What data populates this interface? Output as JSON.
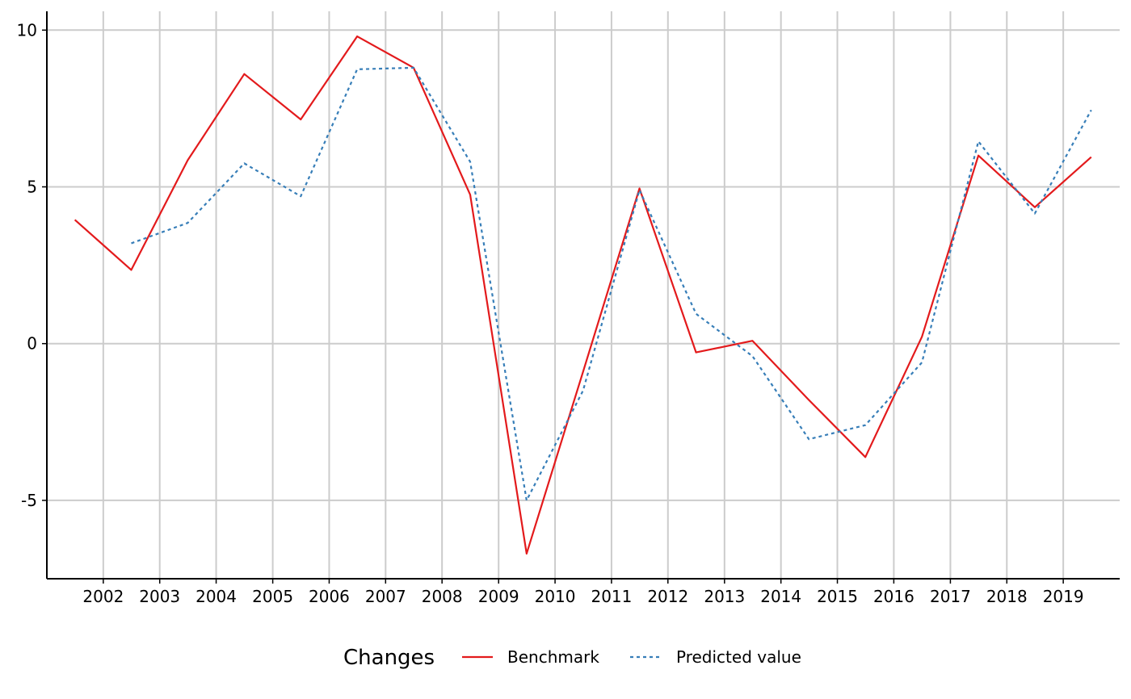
{
  "chart_data": {
    "type": "line",
    "x_axis": {
      "type": "date",
      "tick_labels": [
        "2002",
        "2003",
        "2004",
        "2005",
        "2006",
        "2007",
        "2008",
        "2009",
        "2010",
        "2011",
        "2012",
        "2013",
        "2014",
        "2015",
        "2016",
        "2017",
        "2018",
        "2019"
      ],
      "range": [
        "2001-01-01",
        "2020-01-01"
      ]
    },
    "y_axis": {
      "ticks": [
        -5,
        0,
        5,
        10
      ],
      "tick_labels": [
        "-5",
        "0",
        "5",
        "10"
      ],
      "range": [
        -7.5,
        10.6
      ]
    },
    "grid": true,
    "legend": {
      "title": "Changes",
      "placement": "bottom"
    },
    "series": [
      {
        "name": "Benchmark",
        "color": "#e31a1c",
        "line_style": "solid",
        "x": [
          "2001-07-01",
          "2002-07-01",
          "2003-07-01",
          "2004-07-01",
          "2005-07-01",
          "2006-07-01",
          "2007-07-01",
          "2008-07-01",
          "2009-07-01",
          "2010-07-01",
          "2011-07-01",
          "2012-07-01",
          "2013-07-01",
          "2014-07-01",
          "2015-07-01",
          "2016-07-01",
          "2017-07-01",
          "2018-07-01",
          "2019-07-01"
        ],
        "y": [
          3.95,
          2.35,
          5.85,
          8.6,
          7.15,
          9.8,
          8.8,
          4.75,
          -6.7,
          -0.9,
          4.95,
          -0.28,
          0.09,
          -1.8,
          -3.62,
          0.22,
          6.0,
          4.35,
          5.95
        ]
      },
      {
        "name": "Predicted value",
        "color": "#377eb8",
        "line_style": "dotted",
        "x": [
          "2002-07-01",
          "2003-07-01",
          "2004-07-01",
          "2005-07-01",
          "2006-07-01",
          "2007-07-01",
          "2008-07-01",
          "2009-07-01",
          "2010-07-01",
          "2011-07-01",
          "2012-07-01",
          "2013-07-01",
          "2014-07-01",
          "2015-07-01",
          "2016-07-01",
          "2017-07-01",
          "2018-07-01",
          "2019-07-01"
        ],
        "y": [
          3.2,
          3.85,
          5.75,
          4.7,
          8.75,
          8.8,
          5.8,
          -5.0,
          -1.5,
          4.9,
          0.95,
          -0.4,
          -3.05,
          -2.6,
          -0.6,
          6.45,
          4.15,
          7.45
        ]
      }
    ]
  }
}
